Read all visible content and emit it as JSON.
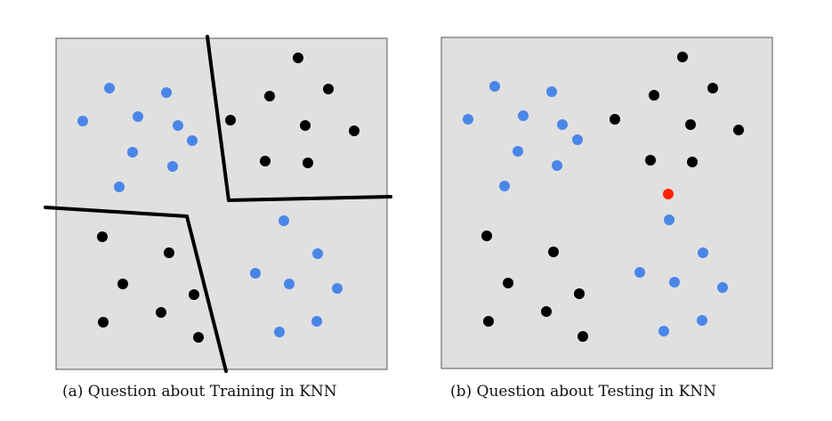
{
  "captions": {
    "a": "(a) Question about Training in KNN",
    "b": "(b) Question about Testing in KNN"
  },
  "colors": {
    "background": "#e0e0e0",
    "class_blue": "#4a86e8",
    "class_black": "#000000",
    "query_red": "#ff2200",
    "boundary": "#000000"
  },
  "chart_data": [
    {
      "type": "scatter",
      "title": "",
      "xlim": [
        0,
        372
      ],
      "ylim": [
        0,
        372
      ],
      "series": [
        {
          "color": "blue",
          "points": [
            [
              60,
              56
            ],
            [
              124,
              61
            ],
            [
              30,
              93
            ],
            [
              92,
              88
            ],
            [
              137,
              98
            ],
            [
              153,
              115
            ],
            [
              86,
              128
            ],
            [
              131,
              144
            ],
            [
              71,
              167
            ],
            [
              256,
              205
            ],
            [
              294,
              242
            ],
            [
              224,
              264
            ],
            [
              262,
              276
            ],
            [
              316,
              281
            ],
            [
              293,
              318
            ],
            [
              251,
              330
            ]
          ]
        },
        {
          "color": "black",
          "points": [
            [
              272,
              22
            ],
            [
              306,
              57
            ],
            [
              240,
              65
            ],
            [
              196,
              92
            ],
            [
              280,
              98
            ],
            [
              335,
              104
            ],
            [
              235,
              138
            ],
            [
              283,
              140
            ],
            [
              52,
              223
            ],
            [
              127,
              241
            ],
            [
              75,
              276
            ],
            [
              155,
              288
            ],
            [
              118,
              308
            ],
            [
              53,
              319
            ],
            [
              160,
              336
            ]
          ]
        }
      ],
      "boundaries": [
        [
          [
            170,
            -2
          ],
          [
            194,
            182
          ]
        ],
        [
          [
            194,
            182
          ],
          [
            376,
            178
          ]
        ],
        [
          [
            -12,
            190
          ],
          [
            147,
            200
          ]
        ],
        [
          [
            147,
            200
          ],
          [
            191,
            374
          ]
        ]
      ]
    },
    {
      "type": "scatter",
      "title": "",
      "xlim": [
        0,
        372
      ],
      "ylim": [
        0,
        372
      ],
      "series": [
        {
          "color": "blue",
          "points": [
            [
              60,
              55
            ],
            [
              124,
              61
            ],
            [
              30,
              92
            ],
            [
              92,
              88
            ],
            [
              136,
              98
            ],
            [
              153,
              115
            ],
            [
              86,
              128
            ],
            [
              130,
              144
            ],
            [
              71,
              167
            ],
            [
              256,
              205
            ],
            [
              294,
              242
            ],
            [
              223,
              264
            ],
            [
              262,
              275
            ],
            [
              316,
              281
            ],
            [
              293,
              318
            ],
            [
              250,
              330
            ]
          ]
        },
        {
          "color": "black",
          "points": [
            [
              271,
              22
            ],
            [
              305,
              57
            ],
            [
              239,
              65
            ],
            [
              195,
              92
            ],
            [
              280,
              98
            ],
            [
              334,
              104
            ],
            [
              235,
              138
            ],
            [
              282,
              140
            ],
            [
              51,
              223
            ],
            [
              126,
              241
            ],
            [
              75,
              276
            ],
            [
              155,
              288
            ],
            [
              118,
              308
            ],
            [
              53,
              319
            ],
            [
              159,
              336
            ]
          ]
        },
        {
          "color": "red",
          "points": [
            [
              255,
              176
            ]
          ]
        }
      ]
    }
  ]
}
